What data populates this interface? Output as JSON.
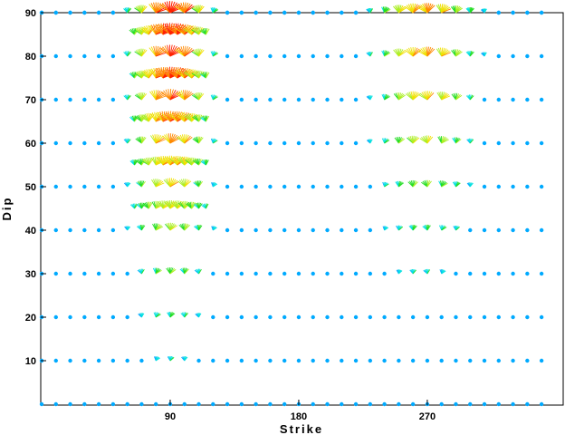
{
  "chart_data": {
    "type": "scatter",
    "title": "",
    "xlabel": "Strike",
    "ylabel": "Dip",
    "xlim": [
      0,
      355
    ],
    "ylim": [
      0,
      90
    ],
    "xticks": [
      "90",
      "180",
      "270"
    ],
    "yticks": [
      "10",
      "20",
      "30",
      "40",
      "50",
      "60",
      "70",
      "80",
      "90"
    ],
    "grid": false,
    "marker": "focal-mechanism fan glyph colored by fit",
    "fit_color_scale": [
      "#00aaff",
      "#00e0e0",
      "#22dd22",
      "#aaee22",
      "#f0e000",
      "#ff8800",
      "#ff2200"
    ],
    "grid_points": {
      "strike_start": 0,
      "strike_step": 10,
      "strike_count": 36,
      "dip_start": 0,
      "dip_step": 10,
      "dip_count": 10
    },
    "fine_rows": {
      "strike_start": 65,
      "strike_step": 5,
      "strike_count": 11,
      "dips": [
        45,
        55,
        65,
        75,
        85
      ]
    },
    "fit_peaks": [
      {
        "strike": 90,
        "dip": 88,
        "sigma_strike": 18,
        "sigma_dip": 42,
        "amplitude": 1.0
      },
      {
        "strike": 268,
        "dip": 88,
        "sigma_strike": 22,
        "sigma_dip": 34,
        "amplitude": 0.78
      }
    ]
  }
}
